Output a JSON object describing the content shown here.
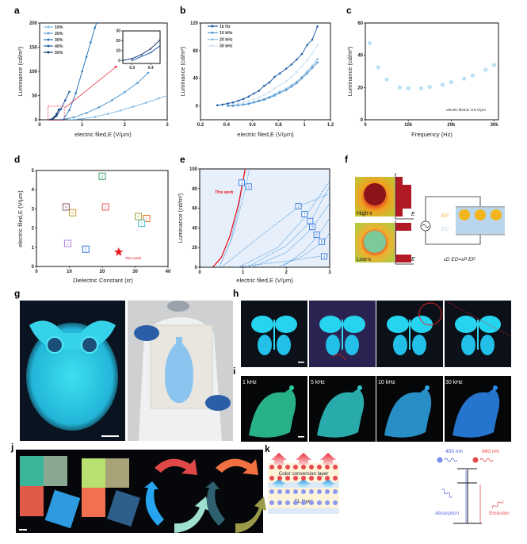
{
  "panel_labels": {
    "a": "a",
    "b": "b",
    "c": "c",
    "d": "d",
    "e": "e",
    "f": "f",
    "g": "g",
    "h": "h",
    "i": "i",
    "j": "j",
    "k": "k"
  },
  "chart_data": [
    {
      "panel": "a",
      "type": "line",
      "xlabel": "electric filed,E (V/μm)",
      "ylabel": "Luminance (cd/m²)",
      "xlim": [
        0,
        3
      ],
      "ylim": [
        0,
        200
      ],
      "xticks": [
        0,
        1,
        2,
        3
      ],
      "yticks": [
        0,
        50,
        100,
        150,
        200
      ],
      "legend": "top-left",
      "series": [
        {
          "name": "10%",
          "color": "#86bde4",
          "x": [
            0.7,
            1.0,
            1.3,
            1.6,
            1.9,
            2.2,
            2.5,
            2.8,
            3.0
          ],
          "y": [
            0,
            2,
            6,
            12,
            19,
            27,
            35,
            44,
            50
          ]
        },
        {
          "name": "20%",
          "color": "#4f9ad3",
          "x": [
            0.5,
            0.8,
            1.1,
            1.4,
            1.7,
            2.0,
            2.3,
            2.55
          ],
          "y": [
            0,
            5,
            14,
            26,
            40,
            57,
            76,
            97
          ]
        },
        {
          "name": "30%",
          "color": "#2d78bf",
          "x": [
            0.55,
            0.7,
            0.85,
            1.0,
            1.1,
            1.2,
            1.3,
            1.34
          ],
          "y": [
            0,
            20,
            55,
            100,
            130,
            160,
            190,
            200
          ]
        },
        {
          "name": "40%",
          "color": "#1d5ea8",
          "x": [
            0.3,
            0.4,
            0.5,
            0.6,
            0.7
          ],
          "y": [
            0,
            8,
            22,
            40,
            58
          ]
        },
        {
          "name": "50%",
          "color": "#12356e",
          "x": [
            0.25,
            0.3,
            0.35,
            0.4,
            0.45
          ],
          "y": [
            0,
            2,
            6,
            12,
            21
          ]
        }
      ],
      "inset": {
        "xlim": [
          0.25,
          0.45
        ],
        "ylim": [
          -3,
          30
        ],
        "xticks": [
          0.3,
          0.4
        ],
        "yticks": [
          0,
          10,
          20,
          30
        ]
      }
    },
    {
      "panel": "b",
      "type": "line",
      "xlabel": "electric filed,E (V/μm)",
      "ylabel": "Luminance (cd/m²)",
      "xlim": [
        0.2,
        1.2
      ],
      "ylim": [
        -20,
        120
      ],
      "xticks": [
        0.2,
        0.4,
        0.6,
        0.8,
        1.0,
        1.2
      ],
      "yticks": [
        0,
        40,
        80,
        120
      ],
      "legend": "top-left",
      "series": [
        {
          "name": "1k Hz",
          "color": "#1f5fa8",
          "x": [
            0.33,
            0.37,
            0.41,
            0.45,
            0.49,
            0.53,
            0.57,
            0.61,
            0.65,
            0.69,
            0.73,
            0.77,
            0.81,
            0.86,
            0.9,
            0.94,
            0.98,
            1.02,
            1.06,
            1.1
          ],
          "y": [
            1,
            2,
            3.5,
            5,
            7.5,
            10,
            13.5,
            18,
            22,
            29,
            34,
            42,
            47,
            54,
            60,
            67,
            75,
            88,
            96,
            115
          ]
        },
        {
          "name": "10 kHz",
          "color": "#4f95cf",
          "x": [
            0.41,
            0.45,
            0.49,
            0.53,
            0.57,
            0.61,
            0.65,
            0.69,
            0.73,
            0.77,
            0.81,
            0.86,
            0.9,
            0.94,
            0.98,
            1.02,
            1.06,
            1.1
          ],
          "y": [
            0,
            0,
            1,
            2,
            3,
            5,
            7,
            9,
            12,
            15,
            19,
            23,
            28,
            33,
            40,
            47,
            55,
            63
          ]
        },
        {
          "name": "20 kHz",
          "color": "#8fc0e6",
          "x": [
            0.41,
            0.45,
            0.49,
            0.53,
            0.57,
            0.61,
            0.65,
            0.69,
            0.73,
            0.77,
            0.81,
            0.86,
            0.9,
            0.94,
            0.98,
            1.02,
            1.06,
            1.1
          ],
          "y": [
            0,
            0,
            1,
            2,
            3.5,
            5.5,
            8,
            10,
            13,
            17,
            21,
            25,
            30,
            35,
            42,
            50,
            58,
            68
          ]
        },
        {
          "name": "30 kHz",
          "color": "#cfe3f4",
          "x": [
            0.41,
            0.45,
            0.49,
            0.53,
            0.57,
            0.61,
            0.65,
            0.69,
            0.73,
            0.77,
            0.81,
            0.86,
            0.9,
            0.94,
            0.98,
            1.02,
            1.06,
            1.1
          ],
          "y": [
            1,
            2,
            3,
            5,
            7,
            9.5,
            12.5,
            16,
            20,
            25,
            30,
            36,
            42,
            49,
            57,
            66,
            76,
            88
          ]
        }
      ]
    },
    {
      "panel": "c",
      "type": "scatter",
      "xlabel": "Frequency (Hz)",
      "ylabel": "Luminance (cd/m²)",
      "xlim": [
        0,
        31000
      ],
      "ylim": [
        0,
        60
      ],
      "xticks": [
        0,
        10000,
        20000,
        30000
      ],
      "xticklabels": [
        "0",
        "10k",
        "20k",
        "30k"
      ],
      "yticks": [
        0,
        20,
        40,
        60
      ],
      "annotation": "electric filed,E :0.8 V/μm",
      "color": "#b9e0f5",
      "x": [
        1000,
        3000,
        5000,
        8000,
        10000,
        13000,
        15000,
        18000,
        20000,
        23000,
        25000,
        28000,
        30000
      ],
      "y": [
        47.5,
        32.5,
        25,
        20,
        19.5,
        19.5,
        20.3,
        21.7,
        23.3,
        25.5,
        27.5,
        31,
        34
      ]
    },
    {
      "panel": "d",
      "type": "scatter",
      "xlabel": "Dielectric Constant (εr)",
      "ylabel": "electric filed,E (V/μm)",
      "xlim": [
        0,
        40
      ],
      "ylim": [
        0,
        5
      ],
      "xticks": [
        0,
        10,
        20,
        30,
        40
      ],
      "yticks": [
        0,
        1,
        2,
        3,
        4,
        5
      ],
      "points": [
        {
          "label": "1",
          "x": 33.5,
          "y": 2.5,
          "color": "#e8702a"
        },
        {
          "label": "2",
          "x": 21,
          "y": 3.1,
          "color": "#e05a5a"
        },
        {
          "label": "3",
          "x": 15,
          "y": 0.9,
          "color": "#2a6fdb"
        },
        {
          "label": "4",
          "x": 20,
          "y": 4.7,
          "color": "#3aa06a"
        },
        {
          "label": "5",
          "x": 9.5,
          "y": 1.2,
          "color": "#b07fe0"
        },
        {
          "label": "6",
          "x": 11,
          "y": 2.8,
          "color": "#c89a2a"
        },
        {
          "label": "7",
          "x": 32,
          "y": 2.25,
          "color": "#3cc0d0"
        },
        {
          "label": "8",
          "x": 9,
          "y": 3.1,
          "color": "#8a5a6a"
        },
        {
          "label": "9",
          "x": 31,
          "y": 2.6,
          "color": "#a0a040"
        }
      ],
      "this_work": {
        "label": "This work",
        "x": 25,
        "y": 0.75,
        "color": "#e8141e"
      }
    },
    {
      "panel": "e",
      "type": "line",
      "xlabel": "electric filed,E (V/μm)",
      "ylabel": "Luminance (cd/m²)",
      "xlim": [
        0,
        3
      ],
      "ylim": [
        0,
        100
      ],
      "xticks": [
        0,
        1,
        2,
        3
      ],
      "yticks": [
        0,
        20,
        40,
        60,
        80,
        100
      ],
      "this_work": {
        "label": "This work",
        "color": "#e8141e",
        "points": [
          [
            0.3,
            0
          ],
          [
            0.5,
            10
          ],
          [
            0.7,
            32
          ],
          [
            0.9,
            65
          ],
          [
            1.05,
            100
          ]
        ]
      },
      "references": [
        {
          "label": "3",
          "points": [
            [
              0.45,
              0
            ],
            [
              0.7,
              25
            ],
            [
              0.9,
              60
            ],
            [
              1.05,
              100
            ]
          ],
          "tag": [
            0.97,
            86
          ]
        },
        {
          "label": "5",
          "points": [
            [
              0.45,
              0
            ],
            [
              0.75,
              30
            ],
            [
              1.0,
              70
            ],
            [
              1.15,
              100
            ]
          ],
          "tag": [
            1.13,
            82
          ]
        },
        {
          "label": "2",
          "points": [
            [
              0.5,
              0
            ],
            [
              1.5,
              35
            ],
            [
              2.3,
              62
            ],
            [
              3,
              75
            ]
          ],
          "tag": [
            2.28,
            62
          ]
        },
        {
          "label": "7",
          "points": [
            [
              0.9,
              0
            ],
            [
              1.8,
              20
            ],
            [
              2.45,
              52
            ],
            [
              3,
              88
            ]
          ],
          "tag": [
            2.42,
            54
          ]
        },
        {
          "label": "1",
          "points": [
            [
              1.1,
              0
            ],
            [
              2,
              22
            ],
            [
              2.55,
              46
            ],
            [
              3,
              82
            ]
          ],
          "tag": [
            2.55,
            47
          ]
        },
        {
          "label": "9",
          "points": [
            [
              1.2,
              0
            ],
            [
              2,
              15
            ],
            [
              2.6,
              40
            ],
            [
              3,
              65
            ]
          ],
          "tag": [
            2.6,
            41
          ]
        },
        {
          "label": "6",
          "points": [
            [
              1.9,
              0
            ],
            [
              2.4,
              16
            ],
            [
              2.75,
              33
            ],
            [
              3,
              50
            ]
          ],
          "tag": [
            2.7,
            33
          ]
        },
        {
          "label": "8",
          "points": [
            [
              1.8,
              0
            ],
            [
              2.4,
              12
            ],
            [
              2.85,
              26
            ],
            [
              3,
              35
            ]
          ],
          "tag": [
            2.82,
            26
          ]
        },
        {
          "label": "4",
          "points": [
            [
              0.8,
              0
            ],
            [
              2,
              6
            ],
            [
              2.9,
              12
            ],
            [
              3,
              14
            ]
          ],
          "tag": [
            2.87,
            11
          ]
        }
      ],
      "ref_color": "#3b8fdc"
    }
  ],
  "panel_f": {
    "high_label": "High-ε",
    "low_label": "Low-ε",
    "axis_label": "E",
    "ep_label": "EP",
    "ed_label": "ED",
    "equation": "εD ED=εP EP"
  },
  "panel_i": {
    "labels": [
      "1 kHz",
      "5 kHz",
      "10 kHz",
      "30 kHz"
    ]
  },
  "panel_k": {
    "top_layer": "Color conversion layer",
    "bottom_layer": "EL layer",
    "wl_blue": "450 nm",
    "wl_red": "660 nm",
    "absorption": "Absorption",
    "emission": "Emission"
  }
}
